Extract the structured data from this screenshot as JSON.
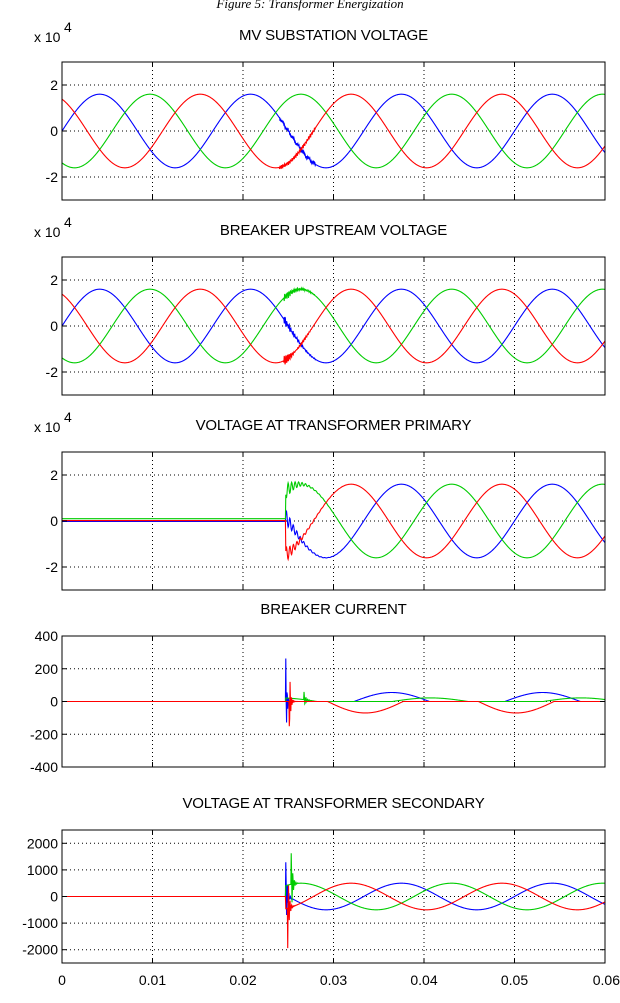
{
  "header_caption": "Figure 5: Transformer Energization",
  "colors": {
    "phase_a": "#0000ff",
    "phase_b": "#00cc00",
    "phase_c": "#ff0000",
    "grid": "#000000"
  },
  "chart_data": [
    {
      "type": "line",
      "title": "MV SUBSTATION VOLTAGE",
      "multiplier_base": "x 10",
      "multiplier_exp": "4",
      "xlim": [
        0,
        0.06
      ],
      "ylim": [
        -3,
        3
      ],
      "yticks": [
        -2,
        0,
        2
      ],
      "ytick_labels": [
        "-2",
        "0",
        "2"
      ],
      "grid": true,
      "series": [
        {
          "color": "blue",
          "amplitude": 1.6,
          "phase_deg": 0,
          "waveform": "steady sine, 60 Hz, small ripple near x=0.025"
        },
        {
          "color": "green",
          "amplitude": 1.6,
          "phase_deg": -120,
          "waveform": "steady sine, 60 Hz"
        },
        {
          "color": "red",
          "amplitude": 1.6,
          "phase_deg": 120,
          "waveform": "steady sine, 60 Hz, small ripple near x=0.025"
        }
      ]
    },
    {
      "type": "line",
      "title": "BREAKER UPSTREAM VOLTAGE",
      "multiplier_base": "x 10",
      "multiplier_exp": "4",
      "xlim": [
        0,
        0.06
      ],
      "ylim": [
        -3,
        3
      ],
      "yticks": [
        -2,
        0,
        2
      ],
      "ytick_labels": [
        "-2",
        "0",
        "2"
      ],
      "grid": true,
      "series": [
        {
          "color": "blue",
          "amplitude": 1.6,
          "phase_deg": 0,
          "waveform": "sine with oscillation near x=0.025-0.027"
        },
        {
          "color": "green",
          "amplitude": 1.6,
          "phase_deg": -120,
          "waveform": "sine with oscillation near x=0.025-0.027"
        },
        {
          "color": "red",
          "amplitude": 1.6,
          "phase_deg": 120,
          "waveform": "sine with oscillation near x=0.025-0.027"
        }
      ]
    },
    {
      "type": "line",
      "title": "VOLTAGE AT TRANSFORMER PRIMARY",
      "multiplier_base": "x 10",
      "multiplier_exp": "4",
      "xlim": [
        0,
        0.06
      ],
      "ylim": [
        -3,
        3
      ],
      "yticks": [
        -2,
        0,
        2
      ],
      "ytick_labels": [
        "-2",
        "0",
        "2"
      ],
      "grid": true,
      "series": [
        {
          "color": "blue",
          "amplitude": 1.6,
          "phase_deg": 0,
          "waveform": "~0 until x=0.025, then sine with transient"
        },
        {
          "color": "green",
          "amplitude": 1.6,
          "phase_deg": -120,
          "waveform": "~0.1 until x=0.025, then sine"
        },
        {
          "color": "red",
          "amplitude": 1.6,
          "phase_deg": 120,
          "waveform": "~0 until x=0.025, then sine with transient"
        }
      ]
    },
    {
      "type": "line",
      "title": "BREAKER CURRENT",
      "multiplier_base": "",
      "multiplier_exp": "",
      "xlim": [
        0,
        0.06
      ],
      "ylim": [
        -400,
        400
      ],
      "yticks": [
        -400,
        -200,
        0,
        200,
        400
      ],
      "ytick_labels": [
        "-400",
        "-200",
        "0",
        "200",
        "400"
      ],
      "grid": true,
      "series": [
        {
          "color": "blue",
          "waveform": "0 until x=0.025, spike to 340, then inrush humps ~50 peaking at x≈0.031 and x≈0.048"
        },
        {
          "color": "green",
          "waveform": "0 until x=0.025, small spikes, then humps ~20"
        },
        {
          "color": "red",
          "waveform": "0 until x=0.025, spike to -280, then inrush humps ~-70 at x≈0.033 and ~-60 at x≈0.050"
        }
      ]
    },
    {
      "type": "line",
      "title": "VOLTAGE AT TRANSFORMER SECONDARY",
      "multiplier_base": "",
      "multiplier_exp": "",
      "xlim": [
        0,
        0.06
      ],
      "ylim": [
        -2500,
        2500
      ],
      "yticks": [
        -2000,
        -1000,
        0,
        1000,
        2000
      ],
      "ytick_labels": [
        "-2000",
        "-1000",
        "0",
        "1000",
        "2000"
      ],
      "xticks": [
        0,
        0.01,
        0.02,
        0.03,
        0.04,
        0.05,
        0.06
      ],
      "xtick_labels": [
        "0",
        "0.01",
        "0.02",
        "0.03",
        "0.04",
        "0.05",
        "0.06"
      ],
      "grid": true,
      "series": [
        {
          "color": "blue",
          "amplitude": 500,
          "phase_deg": 0,
          "waveform": "0 until x=0.025, spike to 1700, then sine"
        },
        {
          "color": "green",
          "amplitude": 500,
          "phase_deg": -120,
          "waveform": "0 until x=0.025, spike to 1700, then sine"
        },
        {
          "color": "red",
          "amplitude": 500,
          "phase_deg": 120,
          "waveform": "0 until x=0.025, spike to -2000, then sine"
        }
      ]
    }
  ]
}
